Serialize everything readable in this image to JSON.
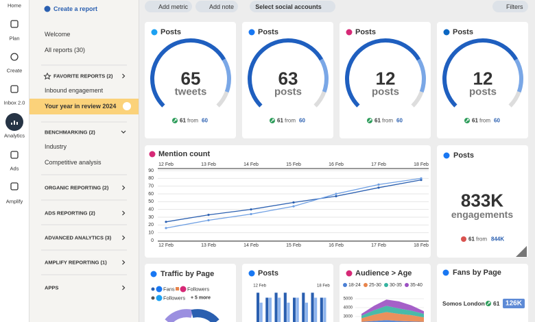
{
  "nav": [
    "Home",
    "Plan",
    "Create",
    "Inbox 2.0",
    "Analytics",
    "Ads",
    "Amplify"
  ],
  "sidebar": {
    "create": "Create a report",
    "links": [
      "Welcome",
      "All reports (30)"
    ],
    "favorites": {
      "title": "FAVORITE REPORTS (2)",
      "items": [
        "Inbound engagement",
        "Your year in review 2024"
      ]
    },
    "benchmarking": {
      "title": "BENCHMARKING (2)",
      "items": [
        "Industry",
        "Competitive analysis"
      ]
    },
    "sections": [
      "ORGANIC REPORTING (2)",
      "ADS REPORTING (2)",
      "ADVANCED ANALYTICS (3)",
      "AMPLIFY REPORTING (1)",
      "APPS"
    ]
  },
  "toolbar": [
    "Add metric",
    "Add note",
    "Select social accounts",
    "Filters"
  ],
  "gauges": [
    {
      "title": "Posts",
      "value": 65,
      "unit": "tweets",
      "previous": 61,
      "from": "from",
      "base": 60
    },
    {
      "title": "Posts",
      "value": 63,
      "unit": "posts",
      "previous": 61,
      "from": "from",
      "base": 60
    },
    {
      "title": "Posts",
      "value": 12,
      "unit": "posts",
      "previous": 61,
      "from": "from",
      "base": 60
    },
    {
      "title": "Posts",
      "value": 12,
      "unit": "posts",
      "previous": 61,
      "from": "from",
      "base": 60
    }
  ],
  "posts_card": {
    "title": "Posts",
    "value": "833K",
    "unit": "engagements",
    "previous": 61,
    "from": "from",
    "base": "844K"
  },
  "traffic": {
    "title": "Traffic by Page",
    "legend": [
      "Fans",
      "Followers",
      "Followers",
      "+ 5 more"
    ]
  },
  "fans": {
    "title": "Fans by Page",
    "rows": [
      {
        "name": "Somos London",
        "previous": 61,
        "value": "126K"
      }
    ]
  },
  "chart_data": [
    {
      "type": "line",
      "title": "Mention count",
      "categories": [
        "12 Feb",
        "13 Feb",
        "14 Feb",
        "15 Feb",
        "16 Feb",
        "17 Feb",
        "18 Feb"
      ],
      "series": [
        {
          "color": "#2a5fb0",
          "values": [
            24,
            33,
            40,
            49,
            57,
            68,
            78
          ]
        },
        {
          "color": "#6e9fe3",
          "values": [
            16,
            26,
            34,
            44,
            60,
            72,
            80
          ]
        }
      ],
      "ylim": [
        0,
        90
      ],
      "yticks": [
        0,
        10,
        20,
        30,
        40,
        50,
        60,
        70,
        80,
        90
      ],
      "grid": true
    },
    {
      "type": "bar",
      "title": "Posts",
      "categories": [
        "12 Feb",
        null,
        null,
        null,
        null,
        null,
        null,
        "18 Feb"
      ],
      "series": [
        {
          "color": "#2a5fb0",
          "values": [
            7,
            6,
            7,
            7,
            6,
            7,
            7,
            6
          ]
        },
        {
          "color": "#8db4ee",
          "values": [
            5,
            6,
            6,
            5,
            6,
            5,
            6,
            6
          ]
        }
      ],
      "ylim": [
        0,
        8
      ]
    },
    {
      "type": "area",
      "title": "Audience > Age",
      "categories": [
        null,
        null,
        null,
        null,
        null,
        null
      ],
      "series": [
        {
          "name": "18-24",
          "color": "#4a7fd4",
          "values": [
            2400,
            2500,
            2600,
            2500,
            2450,
            2400
          ]
        },
        {
          "name": "25-30",
          "color": "#e8844a",
          "values": [
            400,
            700,
            900,
            800,
            700,
            500
          ]
        },
        {
          "name": "30-35",
          "color": "#35b3a0",
          "values": [
            300,
            500,
            700,
            600,
            500,
            400
          ]
        },
        {
          "name": "35-40",
          "color": "#9b4fc2",
          "values": [
            200,
            500,
            700,
            800,
            600,
            300
          ]
        }
      ],
      "ylim": [
        2700,
        5400
      ],
      "yticks": [
        3000,
        4000,
        5000
      ]
    }
  ]
}
